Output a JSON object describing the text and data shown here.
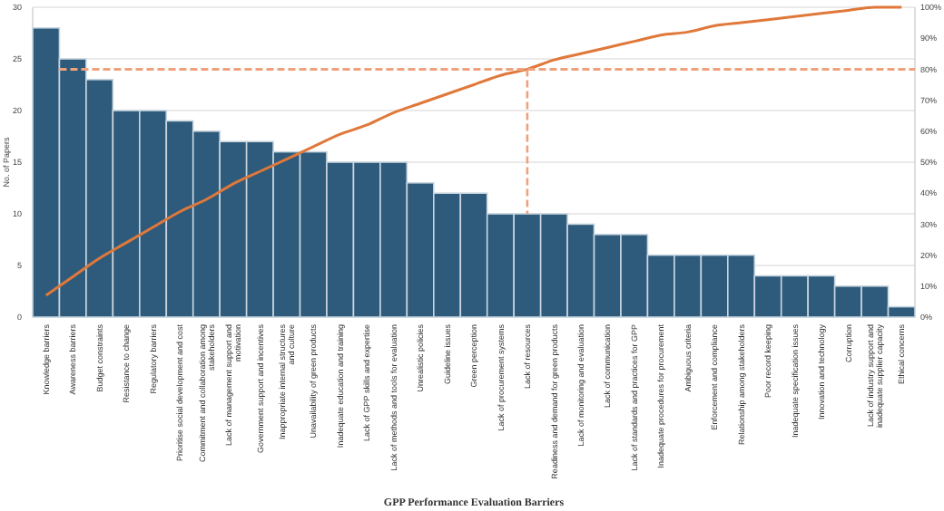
{
  "chart_data": {
    "type": "bar",
    "xlabel": "GPP Performance Evaluation Barriers",
    "ylabel": "No. of Papers",
    "categories": [
      "Knowledge barriers",
      "Awareness barriers",
      "Budget constraints",
      "Resistance to change",
      "Regulatory barriers",
      "Prioritise social development and cost",
      "Commitment and collaboration among stakeholders",
      "Lack of management support and motivation",
      "Government support and incentives",
      "Inappropriate internal structures and culture",
      "Unavailability of green products",
      "Inadequate education and training",
      "Lack of GPP skills and expertise",
      "Lack of methods and tools for evaluation",
      "Unrealistic policies",
      "Guideline issues",
      "Green perception",
      "Lack of procurement systems",
      "Lack of resources",
      "Readiness and demand for green products",
      "Lack of monitoring and evaluation",
      "Lack of communication",
      "Lack of standards and practices for GPP",
      "Inadequate procedures for procurement",
      "Ambiguous criteria",
      "Enforcement and compliance",
      "Relationship among stakeholders",
      "Poor record keeping",
      "Inadequate specification issues",
      "Innovation and technology",
      "Corruption",
      "Lack of industry support and inadequate supplier capacity",
      "Ethical concerns"
    ],
    "series": [
      {
        "color": "#2e5b7b",
        "values": [
          28,
          25,
          23,
          20,
          20,
          19,
          18,
          17,
          17,
          16,
          16,
          15,
          15,
          15,
          13,
          12,
          12,
          10,
          10,
          10,
          9,
          8,
          8,
          6,
          6,
          6,
          6,
          4,
          4,
          4,
          3,
          3,
          1
        ]
      },
      {
        "type": "line",
        "axis": "y2",
        "color": "#e0783a",
        "values": [
          7,
          13,
          19,
          24,
          29,
          34,
          38,
          43,
          47,
          51,
          55,
          59,
          62,
          66,
          69,
          72,
          75,
          78,
          80,
          83,
          85,
          87,
          89,
          91,
          92,
          94,
          95,
          96,
          97,
          98,
          99,
          100,
          100
        ]
      }
    ],
    "ylim": [
      0,
      30
    ],
    "yticks": [
      0,
      5,
      10,
      15,
      20,
      25,
      30
    ],
    "y2lim": [
      0,
      100
    ],
    "y2ticks": [
      {
        "value": 0,
        "label": "0%"
      },
      {
        "value": 10,
        "label": "10%"
      },
      {
        "value": 20,
        "label": "20%"
      },
      {
        "value": 30,
        "label": "30%"
      },
      {
        "value": 40,
        "label": "40%"
      },
      {
        "value": 50,
        "label": "50%"
      },
      {
        "value": 60,
        "label": "60%"
      },
      {
        "value": 70,
        "label": "70%"
      },
      {
        "value": 80,
        "label": "80%"
      },
      {
        "value": 90,
        "label": "90%"
      },
      {
        "value": 100,
        "label": "100%"
      }
    ],
    "ref_lines": [
      {
        "axis": "y2",
        "value": 80,
        "color": "#eea17a",
        "line_style": "dashed"
      },
      {
        "axis": "x",
        "value": "Lack of resources",
        "color": "#eea17a",
        "line_style": "dashed"
      }
    ],
    "grid": "y",
    "line_style": "solid",
    "marker": "none"
  }
}
